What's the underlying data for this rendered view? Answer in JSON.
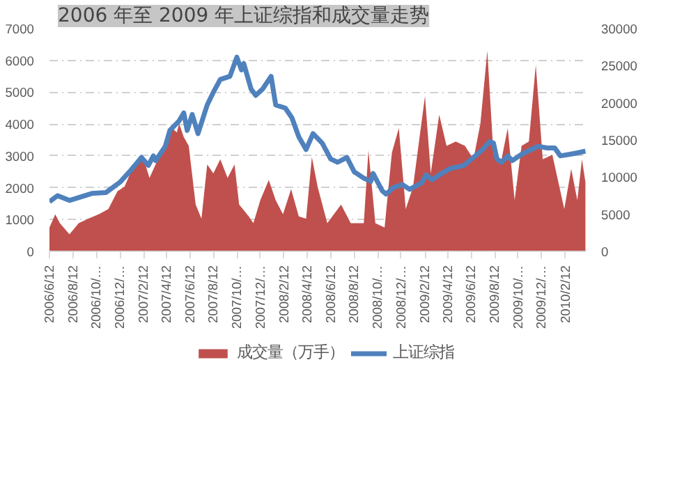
{
  "chart_data": {
    "type": "line",
    "title": "2006 年至 2009 年上证综指和成交量走势",
    "xlim": [
      "2006-06-12",
      "2010-04-06"
    ],
    "xticks": [
      {
        "value": "2006-06-12",
        "label": "2006/6/12"
      },
      {
        "value": "2006-08-12",
        "label": "2006/8/12"
      },
      {
        "value": "2006-10-12",
        "label": "2006/10/…"
      },
      {
        "value": "2006-12-12",
        "label": "2006/12/…"
      },
      {
        "value": "2007-02-12",
        "label": "2007/2/12"
      },
      {
        "value": "2007-04-12",
        "label": "2007/4/12"
      },
      {
        "value": "2007-06-12",
        "label": "2007/6/12"
      },
      {
        "value": "2007-08-12",
        "label": "2007/8/12"
      },
      {
        "value": "2007-10-12",
        "label": "2007/10/…"
      },
      {
        "value": "2007-12-12",
        "label": "2007/12/…"
      },
      {
        "value": "2008-02-12",
        "label": "2008/2/12"
      },
      {
        "value": "2008-04-12",
        "label": "2008/4/12"
      },
      {
        "value": "2008-06-12",
        "label": "2008/6/12"
      },
      {
        "value": "2008-08-12",
        "label": "2008/8/12"
      },
      {
        "value": "2008-10-12",
        "label": "2008/10/…"
      },
      {
        "value": "2008-12-12",
        "label": "2008/12/…"
      },
      {
        "value": "2009-02-12",
        "label": "2009/2/12"
      },
      {
        "value": "2009-04-12",
        "label": "2009/4/12"
      },
      {
        "value": "2009-06-12",
        "label": "2009/6/12"
      },
      {
        "value": "2009-08-12",
        "label": "2009/8/12"
      },
      {
        "value": "2009-10-12",
        "label": "2009/10/…"
      },
      {
        "value": "2009-12-12",
        "label": "2009/12/…"
      },
      {
        "value": "2010-02-12",
        "label": "2010/2/12"
      }
    ],
    "ylim": [
      0,
      7000
    ],
    "yticks": [
      0,
      1000,
      2000,
      3000,
      4000,
      5000,
      6000,
      7000
    ],
    "y2lim": [
      0,
      30000
    ],
    "y2ticks": [
      0,
      5000,
      10000,
      15000,
      20000,
      25000,
      30000
    ],
    "grid": "y",
    "legend": "bottom",
    "series": [
      {
        "name": "成交量（万手）",
        "type": "area",
        "axis": "y2",
        "color": "#c0504d",
        "x": [
          "2006-06-12",
          "2006-06-27",
          "2006-07-09",
          "2006-08-03",
          "2006-08-27",
          "2006-09-21",
          "2006-10-18",
          "2006-11-12",
          "2006-12-06",
          "2006-12-24",
          "2007-01-18",
          "2007-02-12",
          "2007-02-27",
          "2007-03-21",
          "2007-04-09",
          "2007-04-27",
          "2007-05-09",
          "2007-05-15",
          "2007-05-27",
          "2007-06-09",
          "2007-06-27",
          "2007-07-12",
          "2007-07-27",
          "2007-08-12",
          "2007-08-30",
          "2007-09-18",
          "2007-10-06",
          "2007-10-18",
          "2007-11-12",
          "2007-11-24",
          "2007-12-12",
          "2008-01-03",
          "2008-01-21",
          "2008-02-09",
          "2008-03-01",
          "2008-03-21",
          "2008-04-09",
          "2008-04-24",
          "2008-05-09",
          "2008-06-03",
          "2008-07-09",
          "2008-08-03",
          "2008-09-06",
          "2008-09-18",
          "2008-10-06",
          "2008-10-30",
          "2008-11-18",
          "2008-12-06",
          "2008-12-24",
          "2009-01-12",
          "2009-02-12",
          "2009-02-27",
          "2009-03-21",
          "2009-04-09",
          "2009-05-03",
          "2009-05-27",
          "2009-06-18",
          "2009-07-06",
          "2009-07-24",
          "2009-08-09",
          "2009-08-30",
          "2009-09-15",
          "2009-10-03",
          "2009-10-21",
          "2009-11-09",
          "2009-11-27",
          "2009-12-15",
          "2010-01-09",
          "2010-02-09",
          "2010-02-27",
          "2010-03-15",
          "2010-03-27",
          "2010-04-05"
        ],
        "values": [
          3200,
          5000,
          3800,
          2300,
          3800,
          4400,
          5000,
          5700,
          8100,
          8700,
          11700,
          12400,
          9900,
          12400,
          14800,
          16600,
          16000,
          17200,
          15400,
          14200,
          6300,
          4400,
          11700,
          10500,
          12400,
          9900,
          11700,
          6300,
          4700,
          3800,
          6900,
          9600,
          6900,
          5000,
          8400,
          4700,
          4400,
          12700,
          8700,
          3800,
          6300,
          3800,
          3800,
          13600,
          3800,
          3200,
          13300,
          16600,
          5700,
          8700,
          20900,
          10500,
          18400,
          14200,
          14800,
          14200,
          12400,
          17200,
          27000,
          13000,
          12400,
          16600,
          6900,
          14200,
          14800,
          25100,
          12400,
          13000,
          5700,
          11100,
          6900,
          12400,
          9300
        ]
      },
      {
        "name": "上证综指",
        "color": "#4f81bd",
        "x": [
          "2006-06-12",
          "2006-07-03",
          "2006-08-03",
          "2006-09-30",
          "2006-11-06",
          "2006-12-12",
          "2007-01-06",
          "2007-02-06",
          "2007-02-24",
          "2007-03-09",
          "2007-03-15",
          "2007-04-09",
          "2007-04-21",
          "2007-05-15",
          "2007-05-27",
          "2007-06-05",
          "2007-06-18",
          "2007-07-03",
          "2007-07-27",
          "2007-08-12",
          "2007-08-30",
          "2007-09-24",
          "2007-10-12",
          "2007-10-24",
          "2007-10-30",
          "2007-11-18",
          "2007-11-30",
          "2007-12-18",
          "2008-01-09",
          "2008-01-21",
          "2008-02-15",
          "2008-03-03",
          "2008-03-21",
          "2008-04-09",
          "2008-04-27",
          "2008-05-21",
          "2008-06-12",
          "2008-06-30",
          "2008-07-24",
          "2008-08-12",
          "2008-09-06",
          "2008-09-24",
          "2008-09-30",
          "2008-10-24",
          "2008-11-03",
          "2008-11-21",
          "2008-12-15",
          "2009-01-03",
          "2009-02-03",
          "2009-02-15",
          "2009-03-03",
          "2009-03-27",
          "2009-04-18",
          "2009-05-24",
          "2009-06-18",
          "2009-07-12",
          "2009-07-30",
          "2009-08-09",
          "2009-08-18",
          "2009-08-30",
          "2009-09-15",
          "2009-09-27",
          "2009-10-21",
          "2009-11-15",
          "2009-12-03",
          "2009-12-27",
          "2010-01-15",
          "2010-01-30",
          "2010-02-24",
          "2010-03-18",
          "2010-04-05"
        ],
        "values": [
          1560,
          1750,
          1600,
          1820,
          1850,
          2170,
          2500,
          2950,
          2700,
          3000,
          2850,
          3300,
          3800,
          4100,
          4350,
          3800,
          4300,
          3700,
          4600,
          5000,
          5400,
          5500,
          6100,
          5700,
          5900,
          5100,
          4900,
          5100,
          5500,
          4600,
          4500,
          4200,
          3600,
          3200,
          3700,
          3400,
          2900,
          2800,
          2950,
          2500,
          2300,
          2200,
          2450,
          1900,
          1800,
          2000,
          2100,
          1950,
          2150,
          2400,
          2250,
          2450,
          2600,
          2700,
          2950,
          3200,
          3450,
          3400,
          2900,
          2800,
          3000,
          2850,
          3050,
          3200,
          3300,
          3250,
          3250,
          3000,
          3050,
          3100,
          3150
        ]
      }
    ]
  }
}
